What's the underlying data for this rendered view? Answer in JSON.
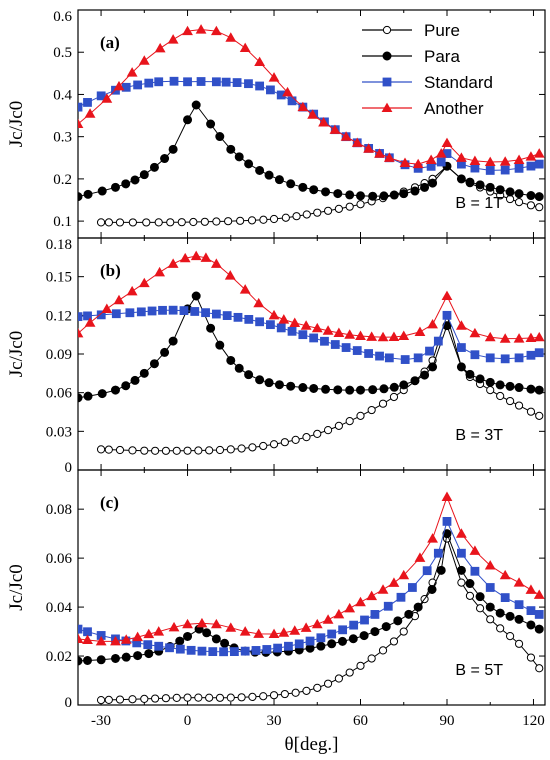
{
  "chart_data": {
    "type": "scatter",
    "xlabel": "θ[deg.]",
    "xlim": [
      -38,
      124
    ],
    "xticks": [
      -30,
      0,
      30,
      60,
      90,
      120
    ],
    "legend": {
      "placement": "top-right",
      "entries": [
        "Pure",
        "Para",
        "Standard",
        "Another"
      ]
    },
    "series_styles": [
      {
        "name": "Pure",
        "marker": "circle-open",
        "color": "#000000"
      },
      {
        "name": "Para",
        "marker": "circle-filled",
        "color": "#000000"
      },
      {
        "name": "Standard",
        "marker": "square",
        "color": "#3050c8"
      },
      {
        "name": "Another",
        "marker": "triangle",
        "color": "#e8141c"
      }
    ],
    "panels": [
      {
        "label": "(a)",
        "annotation": "B = 1T",
        "ylabel": "Jc/Jc0",
        "ylim": [
          0.06,
          0.6
        ],
        "yticks": [
          0.1,
          0.2,
          0.3,
          0.4,
          0.5,
          0.6
        ],
        "ytick_labels": [
          "0.1",
          "0.2",
          "0.3",
          "0.4",
          "0.5",
          "0.6"
        ],
        "series": [
          {
            "name": "Pure",
            "points": [
              [
                -30,
                0.097
              ],
              [
                -10,
                0.097
              ],
              [
                10,
                0.099
              ],
              [
                30,
                0.105
              ],
              [
                45,
                0.12
              ],
              [
                60,
                0.14
              ],
              [
                75,
                0.17
              ],
              [
                85,
                0.2
              ],
              [
                90,
                0.23
              ],
              [
                95,
                0.2
              ],
              [
                105,
                0.17
              ],
              [
                115,
                0.145
              ],
              [
                122,
                0.133
              ]
            ]
          },
          {
            "name": "Para",
            "points": [
              [
                -38,
                0.158
              ],
              [
                -25,
                0.18
              ],
              [
                -15,
                0.21
              ],
              [
                -5,
                0.27
              ],
              [
                0,
                0.34
              ],
              [
                3,
                0.375
              ],
              [
                8,
                0.33
              ],
              [
                15,
                0.27
              ],
              [
                25,
                0.22
              ],
              [
                40,
                0.18
              ],
              [
                60,
                0.16
              ],
              [
                75,
                0.165
              ],
              [
                85,
                0.19
              ],
              [
                90,
                0.23
              ],
              [
                95,
                0.2
              ],
              [
                105,
                0.18
              ],
              [
                115,
                0.165
              ],
              [
                122,
                0.158
              ]
            ]
          },
          {
            "name": "Standard",
            "points": [
              [
                -38,
                0.37
              ],
              [
                -25,
                0.41
              ],
              [
                -10,
                0.43
              ],
              [
                0,
                0.43
              ],
              [
                10,
                0.43
              ],
              [
                25,
                0.42
              ],
              [
                40,
                0.37
              ],
              [
                55,
                0.3
              ],
              [
                70,
                0.25
              ],
              [
                80,
                0.225
              ],
              [
                88,
                0.24
              ],
              [
                90,
                0.26
              ],
              [
                95,
                0.235
              ],
              [
                105,
                0.22
              ],
              [
                115,
                0.225
              ],
              [
                122,
                0.235
              ]
            ]
          },
          {
            "name": "Another",
            "points": [
              [
                -38,
                0.33
              ],
              [
                -28,
                0.39
              ],
              [
                -15,
                0.48
              ],
              [
                -5,
                0.53
              ],
              [
                0,
                0.55
              ],
              [
                10,
                0.55
              ],
              [
                20,
                0.51
              ],
              [
                30,
                0.44
              ],
              [
                40,
                0.37
              ],
              [
                55,
                0.3
              ],
              [
                70,
                0.25
              ],
              [
                80,
                0.235
              ],
              [
                88,
                0.26
              ],
              [
                90,
                0.285
              ],
              [
                95,
                0.25
              ],
              [
                105,
                0.24
              ],
              [
                115,
                0.245
              ],
              [
                122,
                0.26
              ]
            ]
          }
        ]
      },
      {
        "label": "(b)",
        "annotation": "B = 3T",
        "ylabel": "Jc/Jc0",
        "ylim": [
          0,
          0.18
        ],
        "yticks": [
          0,
          0.03,
          0.06,
          0.09,
          0.12,
          0.15,
          0.18
        ],
        "ytick_labels": [
          "0",
          "0.03",
          "0.06",
          "0.09",
          "0.12",
          "0.15",
          "0.18"
        ],
        "series": [
          {
            "name": "Pure",
            "points": [
              [
                -30,
                0.016
              ],
              [
                -15,
                0.015
              ],
              [
                0,
                0.015
              ],
              [
                15,
                0.016
              ],
              [
                30,
                0.02
              ],
              [
                45,
                0.028
              ],
              [
                60,
                0.042
              ],
              [
                75,
                0.062
              ],
              [
                85,
                0.085
              ],
              [
                90,
                0.12
              ],
              [
                95,
                0.08
              ],
              [
                105,
                0.062
              ],
              [
                115,
                0.05
              ],
              [
                122,
                0.042
              ]
            ]
          },
          {
            "name": "Para",
            "points": [
              [
                -38,
                0.056
              ],
              [
                -25,
                0.062
              ],
              [
                -15,
                0.075
              ],
              [
                -5,
                0.1
              ],
              [
                0,
                0.125
              ],
              [
                3,
                0.135
              ],
              [
                8,
                0.11
              ],
              [
                15,
                0.085
              ],
              [
                25,
                0.07
              ],
              [
                40,
                0.064
              ],
              [
                60,
                0.062
              ],
              [
                75,
                0.066
              ],
              [
                85,
                0.08
              ],
              [
                90,
                0.112
              ],
              [
                95,
                0.08
              ],
              [
                105,
                0.068
              ],
              [
                115,
                0.064
              ],
              [
                122,
                0.062
              ]
            ]
          },
          {
            "name": "Standard",
            "points": [
              [
                -38,
                0.119
              ],
              [
                -20,
                0.122
              ],
              [
                -5,
                0.124
              ],
              [
                10,
                0.121
              ],
              [
                25,
                0.115
              ],
              [
                40,
                0.105
              ],
              [
                55,
                0.095
              ],
              [
                70,
                0.087
              ],
              [
                80,
                0.087
              ],
              [
                87,
                0.1
              ],
              [
                90,
                0.12
              ],
              [
                95,
                0.095
              ],
              [
                105,
                0.087
              ],
              [
                115,
                0.087
              ],
              [
                122,
                0.091
              ]
            ]
          },
          {
            "name": "Another",
            "points": [
              [
                -38,
                0.106
              ],
              [
                -28,
                0.125
              ],
              [
                -15,
                0.145
              ],
              [
                -5,
                0.16
              ],
              [
                3,
                0.166
              ],
              [
                10,
                0.16
              ],
              [
                20,
                0.14
              ],
              [
                30,
                0.12
              ],
              [
                45,
                0.11
              ],
              [
                60,
                0.104
              ],
              [
                75,
                0.104
              ],
              [
                85,
                0.113
              ],
              [
                90,
                0.135
              ],
              [
                95,
                0.112
              ],
              [
                105,
                0.103
              ],
              [
                115,
                0.102
              ],
              [
                122,
                0.103
              ]
            ]
          }
        ]
      },
      {
        "label": "(c)",
        "annotation": "B = 5T",
        "ylabel": "Jc/Jc0",
        "ylim": [
          0,
          0.096
        ],
        "yticks": [
          0,
          0.02,
          0.04,
          0.06,
          0.08
        ],
        "ytick_labels": [
          "0",
          "0.02",
          "0.04",
          "0.06",
          "0.08"
        ],
        "series": [
          {
            "name": "Pure",
            "points": [
              [
                -30,
                0.002
              ],
              [
                -15,
                0.0025
              ],
              [
                0,
                0.003
              ],
              [
                15,
                0.003
              ],
              [
                30,
                0.004
              ],
              [
                45,
                0.007
              ],
              [
                60,
                0.016
              ],
              [
                75,
                0.03
              ],
              [
                85,
                0.05
              ],
              [
                90,
                0.068
              ],
              [
                95,
                0.05
              ],
              [
                105,
                0.035
              ],
              [
                115,
                0.025
              ],
              [
                122,
                0.015
              ]
            ]
          },
          {
            "name": "Para",
            "points": [
              [
                -38,
                0.018
              ],
              [
                -25,
                0.019
              ],
              [
                -10,
                0.022
              ],
              [
                0,
                0.028
              ],
              [
                4,
                0.031
              ],
              [
                10,
                0.027
              ],
              [
                20,
                0.022
              ],
              [
                35,
                0.022
              ],
              [
                50,
                0.025
              ],
              [
                65,
                0.03
              ],
              [
                80,
                0.04
              ],
              [
                88,
                0.055
              ],
              [
                90,
                0.07
              ],
              [
                95,
                0.055
              ],
              [
                105,
                0.04
              ],
              [
                115,
                0.035
              ],
              [
                122,
                0.031
              ]
            ]
          },
          {
            "name": "Standard",
            "points": [
              [
                -38,
                0.031
              ],
              [
                -25,
                0.027
              ],
              [
                -10,
                0.024
              ],
              [
                5,
                0.022
              ],
              [
                20,
                0.022
              ],
              [
                35,
                0.024
              ],
              [
                50,
                0.029
              ],
              [
                65,
                0.037
              ],
              [
                78,
                0.048
              ],
              [
                87,
                0.062
              ],
              [
                90,
                0.075
              ],
              [
                95,
                0.062
              ],
              [
                105,
                0.048
              ],
              [
                115,
                0.041
              ],
              [
                122,
                0.037
              ]
            ]
          },
          {
            "name": "Another",
            "points": [
              [
                -38,
                0.027
              ],
              [
                -25,
                0.026
              ],
              [
                -10,
                0.03
              ],
              [
                0,
                0.033
              ],
              [
                10,
                0.033
              ],
              [
                20,
                0.03
              ],
              [
                30,
                0.029
              ],
              [
                45,
                0.033
              ],
              [
                60,
                0.042
              ],
              [
                75,
                0.053
              ],
              [
                85,
                0.068
              ],
              [
                90,
                0.085
              ],
              [
                95,
                0.07
              ],
              [
                105,
                0.057
              ],
              [
                115,
                0.05
              ],
              [
                122,
                0.045
              ]
            ]
          }
        ]
      }
    ]
  }
}
